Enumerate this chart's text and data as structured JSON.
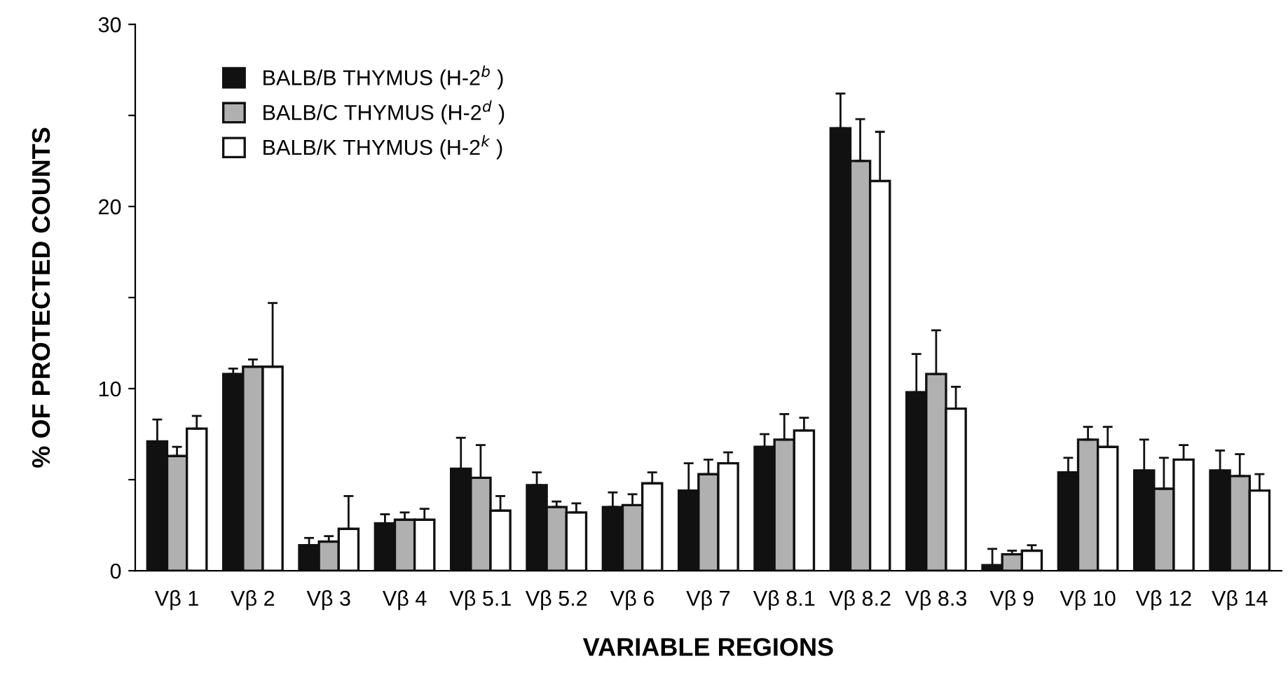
{
  "chart_data": {
    "type": "bar",
    "xlabel": "VARIABLE REGIONS",
    "ylabel": "% OF PROTECTED COUNTS",
    "categories": [
      "Vβ 1",
      "Vβ 2",
      "Vβ 3",
      "Vβ 4",
      "Vβ 5.1",
      "Vβ 5.2",
      "Vβ 6",
      "Vβ 7",
      "Vβ 8.1",
      "Vβ 8.2",
      "Vβ 8.3",
      "Vβ 9",
      "Vβ 10",
      "Vβ 12",
      "Vβ 14"
    ],
    "series": [
      {
        "name": "BALB/B THYMUS (H-2$^{b}$ )",
        "color": "#111111",
        "values": [
          7.1,
          10.8,
          1.4,
          2.6,
          5.6,
          4.7,
          3.5,
          4.4,
          6.8,
          24.3,
          9.8,
          0.3,
          5.4,
          5.5,
          5.5
        ],
        "errors": [
          1.2,
          0.3,
          0.4,
          0.5,
          1.7,
          0.7,
          0.8,
          1.5,
          0.7,
          1.9,
          2.1,
          0.9,
          0.8,
          1.7,
          1.1
        ]
      },
      {
        "name": "BALB/C THYMUS (H-2$^{d}$ )",
        "color": "#b0b0b0",
        "values": [
          6.3,
          11.2,
          1.6,
          2.8,
          5.1,
          3.5,
          3.6,
          5.3,
          7.2,
          22.5,
          10.8,
          0.9,
          7.2,
          4.5,
          5.2
        ],
        "errors": [
          0.5,
          0.4,
          0.3,
          0.4,
          1.8,
          0.3,
          0.6,
          0.8,
          1.4,
          2.3,
          2.4,
          0.2,
          0.7,
          1.7,
          1.2
        ]
      },
      {
        "name": "BALB/K THYMUS (H-2$^{k}$ )",
        "color": "#ffffff",
        "values": [
          7.8,
          11.2,
          2.3,
          2.8,
          3.3,
          3.2,
          4.8,
          5.9,
          7.7,
          21.4,
          8.9,
          1.1,
          6.8,
          6.1,
          4.4
        ],
        "errors": [
          0.7,
          3.5,
          1.8,
          0.6,
          0.8,
          0.5,
          0.6,
          0.6,
          0.7,
          2.7,
          1.2,
          0.3,
          1.1,
          0.8,
          0.9
        ]
      }
    ],
    "ylim": [
      0,
      30
    ],
    "yticks": [
      0,
      {
        "value": 5,
        "label": null
      },
      10,
      {
        "value": 15,
        "label": null
      },
      20,
      {
        "value": 25,
        "label": null
      },
      30
    ],
    "legend": "top left",
    "grid": false
  }
}
